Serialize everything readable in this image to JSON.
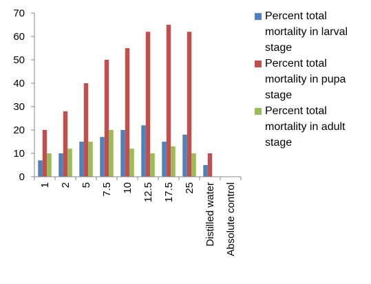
{
  "chart_data": {
    "type": "bar",
    "categories": [
      "1",
      "2",
      "5",
      "7.5",
      "10",
      "12.5",
      "17.5",
      "25",
      "Distilled water",
      "Absolute control"
    ],
    "series": [
      {
        "name": "Percent total mortality in larval stage",
        "color": "#4f81bd",
        "values": [
          7,
          10,
          15,
          17,
          20,
          22,
          15,
          18,
          5,
          0
        ]
      },
      {
        "name": "Percent total mortality in pupa stage",
        "color": "#c0504d",
        "values": [
          20,
          28,
          40,
          50,
          55,
          62,
          65,
          62,
          10,
          0
        ]
      },
      {
        "name": "Percent total mortality in adult stage",
        "color": "#9bbb59",
        "values": [
          10,
          12,
          15,
          20,
          12,
          10,
          13,
          10,
          0,
          0
        ]
      }
    ],
    "yticks": [
      "0",
      "10",
      "20",
      "30",
      "40",
      "50",
      "60",
      "70"
    ],
    "ylim": [
      0,
      70
    ],
    "grid": false,
    "legend_position": "right"
  }
}
